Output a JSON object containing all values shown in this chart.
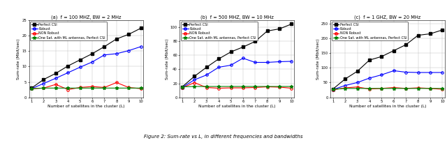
{
  "x": [
    1,
    2,
    3,
    4,
    5,
    6,
    7,
    8,
    9,
    10
  ],
  "panels": [
    {
      "title": "(a)  f = 100 MHZ, BW = 2 MHz",
      "ylabel": "Sum-rate (Mbit/sec)",
      "xlabel": "Number of satellites in the cluster (L)",
      "ylim": [
        0,
        25
      ],
      "yticks": [
        0,
        5,
        10,
        15,
        20,
        25
      ],
      "perfect_csi": [
        3.0,
        5.8,
        7.8,
        10.2,
        12.2,
        14.2,
        16.5,
        19.0,
        20.5,
        22.5
      ],
      "robust": [
        2.8,
        4.5,
        6.2,
        8.0,
        9.8,
        11.5,
        13.8,
        14.2,
        15.2,
        16.5
      ],
      "non_robust": [
        2.8,
        3.0,
        4.2,
        2.5,
        3.2,
        3.5,
        3.2,
        4.8,
        3.2,
        2.8
      ],
      "one_sat": [
        2.8,
        3.0,
        3.0,
        3.0,
        3.0,
        3.0,
        3.0,
        3.0,
        3.0,
        3.0
      ]
    },
    {
      "title": "(b)  f = 500 MHZ, BW = 10 MHz",
      "ylabel": "Sum-rate (Mbit/sec)",
      "xlabel": "Number of satellites in the cluster (L)",
      "ylim": [
        0,
        110
      ],
      "yticks": [
        0,
        20,
        40,
        60,
        80,
        100
      ],
      "perfect_csi": [
        15.0,
        30.0,
        43.0,
        55.0,
        65.0,
        72.0,
        80.0,
        95.0,
        98.0,
        105.0
      ],
      "robust": [
        14.0,
        25.0,
        32.0,
        43.0,
        46.0,
        56.0,
        50.0,
        50.0,
        51.0,
        51.5
      ],
      "non_robust": [
        13.5,
        21.0,
        14.0,
        13.0,
        13.5,
        13.5,
        14.0,
        15.0,
        14.5,
        13.0
      ],
      "one_sat": [
        15.0,
        15.5,
        15.5,
        15.5,
        15.5,
        15.5,
        15.5,
        15.5,
        15.5,
        15.5
      ]
    },
    {
      "title": "(c)  f = 1 GHZ, BW = 20 MHz",
      "ylabel": "Sum-rate (Mbit/sec)",
      "xlabel": "Number of satellites in the cluster (L)",
      "ylim": [
        0,
        260
      ],
      "yticks": [
        0,
        50,
        100,
        150,
        200,
        250
      ],
      "perfect_csi": [
        28.0,
        62.0,
        88.0,
        126.0,
        138.0,
        158.0,
        178.0,
        210.0,
        215.0,
        228.0
      ],
      "robust": [
        26.0,
        40.0,
        50.0,
        65.0,
        76.0,
        90.0,
        85.0,
        84.0,
        84.0,
        84.0
      ],
      "non_robust": [
        25.0,
        32.0,
        35.0,
        28.0,
        30.0,
        33.0,
        30.0,
        32.0,
        30.0,
        27.0
      ],
      "one_sat": [
        27.0,
        30.0,
        30.0,
        30.0,
        30.0,
        30.0,
        30.0,
        30.0,
        30.0,
        30.0
      ]
    }
  ],
  "colors": {
    "perfect_csi": "#000000",
    "robust": "#0000ff",
    "non_robust": "#ff0000",
    "one_sat": "#008000"
  },
  "legend_labels": [
    "Perfect CSI",
    "Robust",
    "NON Robust",
    "One Sat. with ML antennas, Perfect CSI"
  ],
  "caption": "Figure 2: Sum-rate vs L, in different frequencies and bandwidths"
}
